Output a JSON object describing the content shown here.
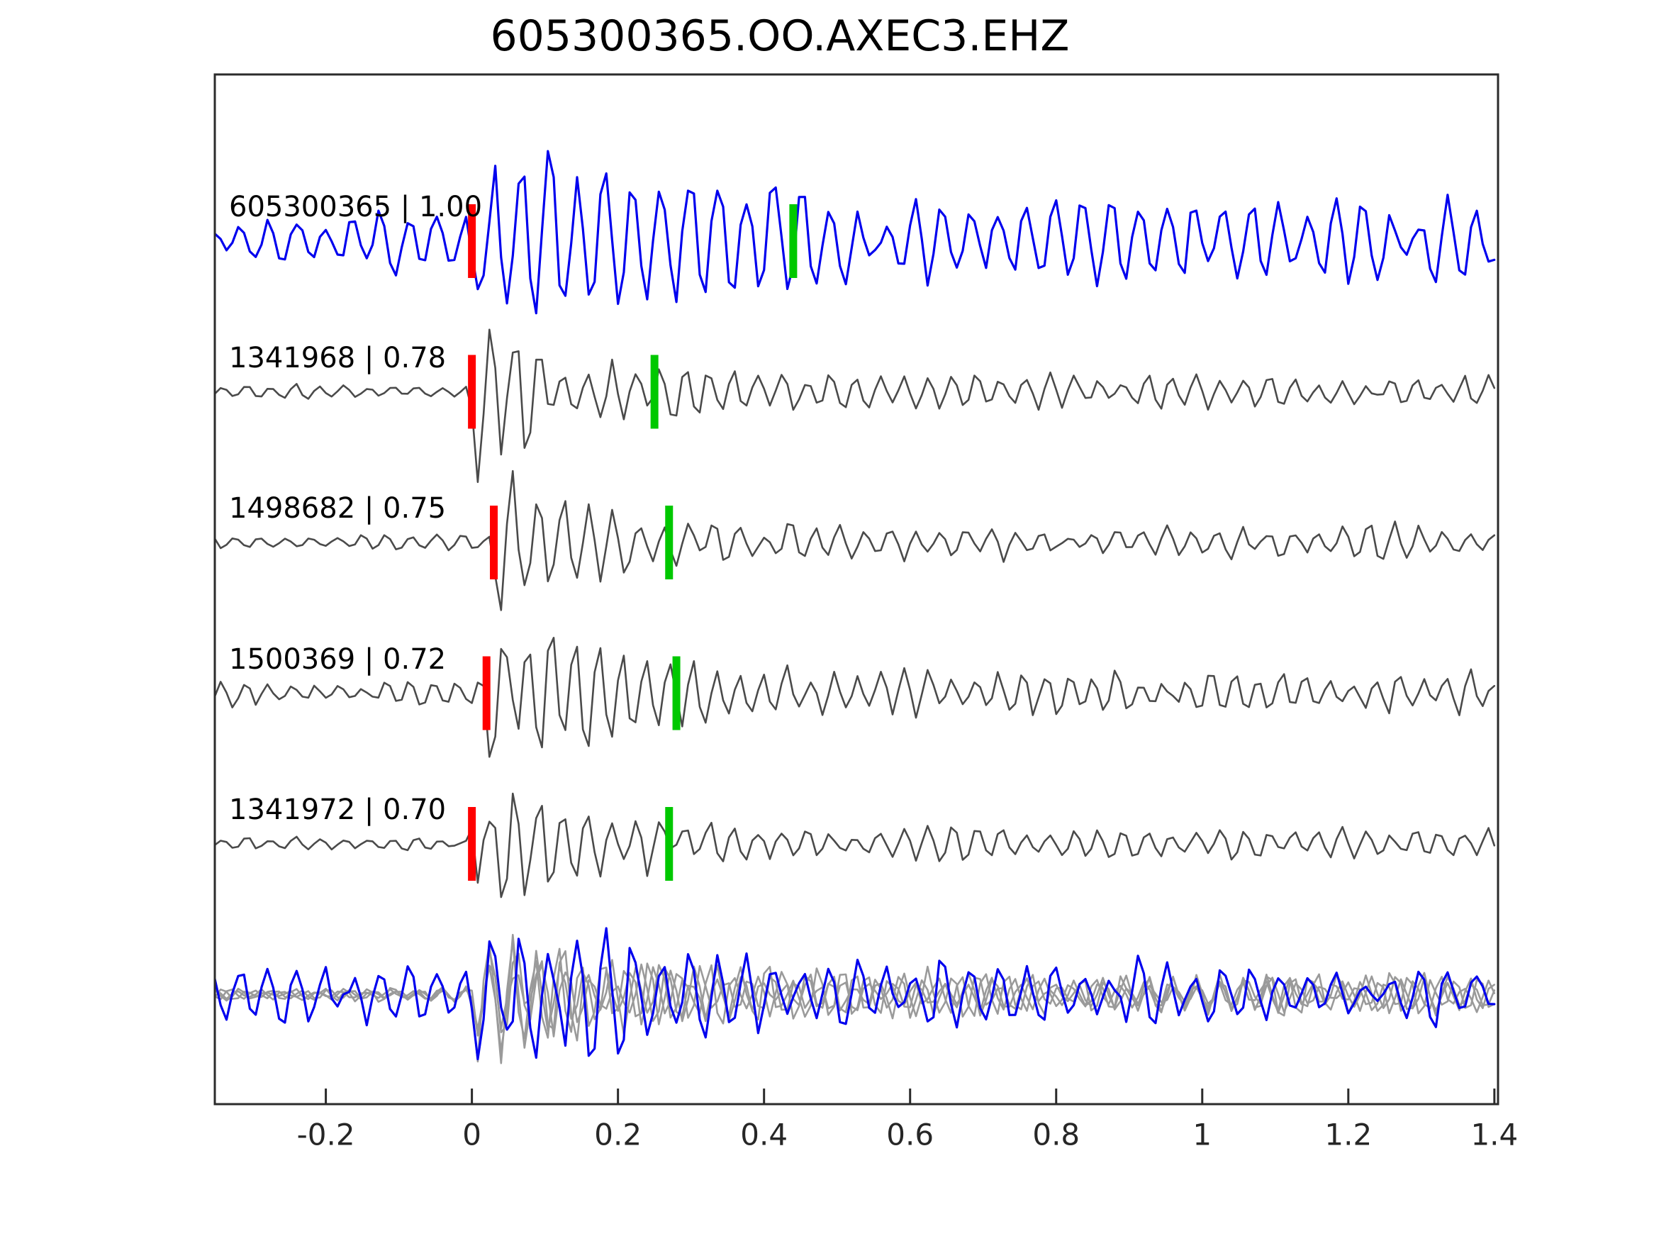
{
  "figure": {
    "title": "605300365.OO.AXEC3.EHZ"
  },
  "chart_data": {
    "type": "line",
    "title": "605300365.OO.AXEC3.EHZ",
    "xlabel": "",
    "ylabel": "",
    "xlim": [
      -0.352,
      1.405
    ],
    "x_ticks": [
      -0.2,
      0,
      0.2,
      0.4,
      0.6,
      0.8,
      1,
      1.2,
      1.4
    ],
    "x_tick_labels": [
      "-0.2",
      "0",
      "0.2",
      "0.4",
      "0.6",
      "0.8",
      "1",
      "1.2",
      "1.4"
    ],
    "grid": false,
    "legend_position": "none",
    "colors": {
      "template_trace": "#0000ee",
      "detection_trace": "#4a4a4a",
      "overlay_gray_trace": "#9a9a9a",
      "pick_red": "#ff0000",
      "pick_green": "#00c800",
      "axis": "#2b2b2b"
    },
    "traces": [
      {
        "label": "605300365 | 1.00",
        "event_id": "605300365",
        "correlation": 1.0,
        "kind": "template",
        "row": 0,
        "pick_red_t": 0.0,
        "pick_green_t": 0.44,
        "wave": {
          "seed": 7,
          "freq": 26,
          "pre": 40,
          "burst": 120,
          "coda": 45,
          "decay": 2.4
        }
      },
      {
        "label": "1341968 | 0.78",
        "event_id": "1341968",
        "correlation": 0.78,
        "kind": "detection",
        "row": 1,
        "pick_red_t": 0.0,
        "pick_green_t": 0.25,
        "wave": {
          "seed": 21,
          "freq": 30,
          "pre": 9,
          "burst": 105,
          "coda": 22,
          "decay": 6.5
        }
      },
      {
        "label": "1498682 | 0.75",
        "event_id": "1498682",
        "correlation": 0.75,
        "kind": "detection",
        "row": 2,
        "pick_red_t": 0.03,
        "pick_green_t": 0.27,
        "wave": {
          "seed": 32,
          "freq": 29,
          "pre": 11,
          "burst": 105,
          "coda": 21,
          "decay": 6.0
        }
      },
      {
        "label": "1500369 | 0.72",
        "event_id": "1500369",
        "correlation": 0.72,
        "kind": "detection",
        "row": 3,
        "pick_red_t": 0.02,
        "pick_green_t": 0.28,
        "wave": {
          "seed": 43,
          "freq": 31,
          "pre": 14,
          "burst": 105,
          "coda": 27,
          "decay": 5.0
        }
      },
      {
        "label": "1341972 | 0.70",
        "event_id": "1341972",
        "correlation": 0.7,
        "kind": "detection",
        "row": 4,
        "pick_red_t": 0.0,
        "pick_green_t": 0.27,
        "wave": {
          "seed": 54,
          "freq": 30,
          "pre": 9,
          "burst": 105,
          "coda": 20,
          "decay": 7.0
        }
      }
    ],
    "overlay": {
      "row": 5,
      "description": "all detections (gray) overlaid with template (blue), aligned at t=0",
      "gray_members": [
        {
          "event_id": "1341968",
          "wave": {
            "seed": 81,
            "freq": 29,
            "pre": 8,
            "burst": 85,
            "coda": 24,
            "decay": 5.5
          }
        },
        {
          "event_id": "1498682",
          "wave": {
            "seed": 82,
            "freq": 31,
            "pre": 8,
            "burst": 85,
            "coda": 24,
            "decay": 5.5
          }
        },
        {
          "event_id": "1500369",
          "wave": {
            "seed": 83,
            "freq": 30,
            "pre": 8,
            "burst": 85,
            "coda": 26,
            "decay": 5.0
          }
        },
        {
          "event_id": "1341972",
          "wave": {
            "seed": 84,
            "freq": 32,
            "pre": 8,
            "burst": 85,
            "coda": 22,
            "decay": 6.0
          }
        }
      ],
      "blue_member": {
        "event_id": "605300365",
        "wave": {
          "seed": 70,
          "freq": 26,
          "pre": 34,
          "burst": 95,
          "coda": 36,
          "decay": 2.6
        }
      }
    }
  }
}
